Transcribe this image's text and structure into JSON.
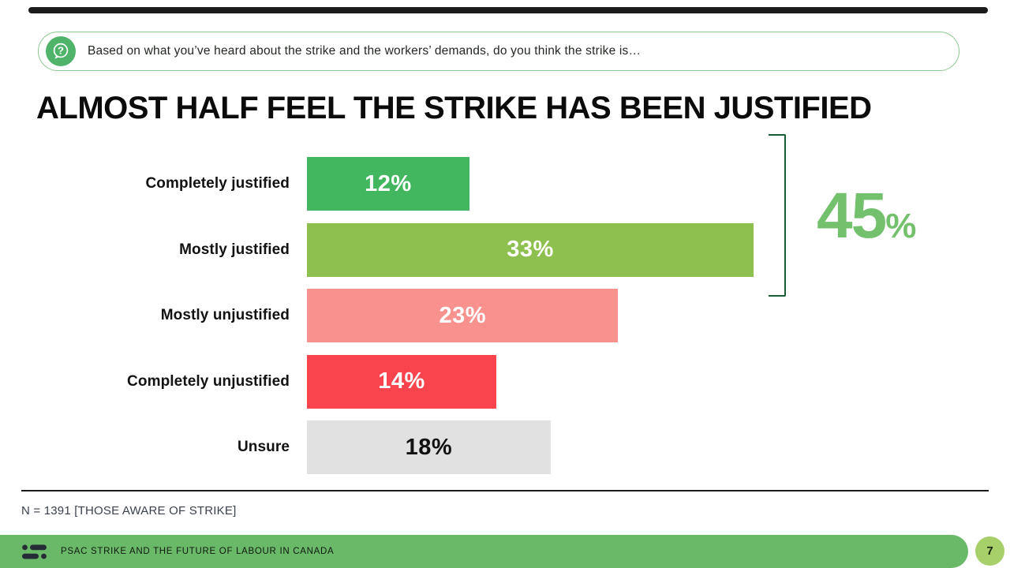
{
  "question_bar": {
    "text": "Based on what you’ve heard about the strike and the workers’ demands, do you think the strike is…",
    "icon": "question-bubble-icon",
    "icon_color": "#4fb46a",
    "border_color": "#8bc98e"
  },
  "title": "ALMOST HALF FEEL THE STRIKE HAS BEEN JUSTIFIED",
  "chart_data": {
    "type": "bar",
    "orientation": "horizontal",
    "categories": [
      "Completely justified",
      "Mostly justified",
      "Mostly unjustified",
      "Completely unjustified",
      "Unsure"
    ],
    "values": [
      12,
      33,
      23,
      14,
      18
    ],
    "value_labels": [
      "12%",
      "33%",
      "23%",
      "14%",
      "18%"
    ],
    "bar_colors": [
      "#43b75f",
      "#8ec04f",
      "#f9928f",
      "#f9444e",
      "#e2e1e1"
    ],
    "value_label_colors": [
      "#ffffff",
      "#ffffff",
      "#ffffff",
      "#ffffff",
      "#111111"
    ],
    "xlim": [
      0,
      35
    ],
    "grid": false,
    "legend": false,
    "annotation": {
      "value": "45",
      "suffix": "%",
      "color": "#74c16d",
      "bracket_color": "#1b5c38",
      "grouped_categories": [
        "Completely justified",
        "Mostly justified"
      ]
    }
  },
  "footnote": "N = 1391 [THOSE AWARE OF STRIKE]",
  "footer": {
    "title": "PSAC STRIKE AND THE FUTURE OF LABOUR IN CANADA",
    "page_number": "7",
    "logo": "abacus-data-logo",
    "bar_color": "#69b968",
    "page_circle_color": "#a7d06a"
  },
  "decor": {
    "top_bar_color": "#1c1c1c"
  }
}
